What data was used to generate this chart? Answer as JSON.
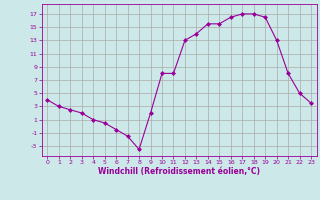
{
  "x": [
    0,
    1,
    2,
    3,
    4,
    5,
    6,
    7,
    8,
    9,
    10,
    11,
    12,
    13,
    14,
    15,
    16,
    17,
    18,
    19,
    20,
    21,
    22,
    23
  ],
  "y": [
    4,
    3,
    2.5,
    2,
    1,
    0.5,
    -0.5,
    -1.5,
    -3.5,
    2,
    8,
    8,
    13,
    14,
    15.5,
    15.5,
    16.5,
    17,
    17,
    16.5,
    13,
    8,
    5,
    3.5
  ],
  "line_color": "#990099",
  "marker": "D",
  "marker_size": 2,
  "bg_color": "#cce8e8",
  "grid_color": "#aaaaaa",
  "xlabel": "Windchill (Refroidissement éolien,°C)",
  "xlabel_color": "#990099",
  "tick_color": "#990099",
  "yticks": [
    -3,
    -1,
    1,
    3,
    5,
    7,
    9,
    11,
    13,
    15,
    17
  ],
  "xticks": [
    0,
    1,
    2,
    3,
    4,
    5,
    6,
    7,
    8,
    9,
    10,
    11,
    12,
    13,
    14,
    15,
    16,
    17,
    18,
    19,
    20,
    21,
    22,
    23
  ],
  "ylim": [
    -4.5,
    18.5
  ],
  "xlim": [
    -0.5,
    23.5
  ]
}
